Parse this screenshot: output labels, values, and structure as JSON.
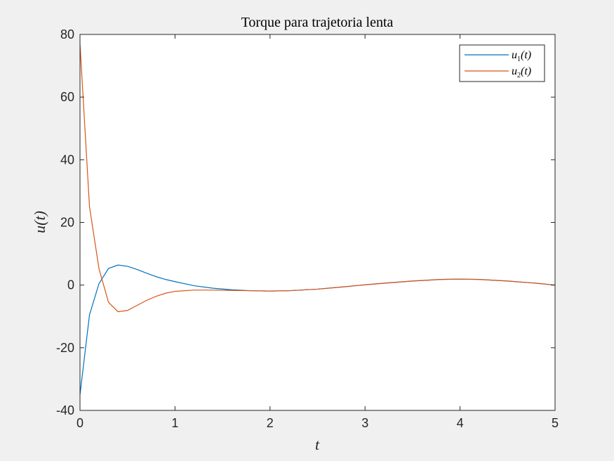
{
  "chart_data": {
    "type": "line",
    "title": "Torque para trajetoria lenta",
    "xlabel": "t",
    "ylabel": "u(t)",
    "xlim": [
      0,
      5
    ],
    "ylim": [
      -40,
      80
    ],
    "xticks": [
      0,
      1,
      2,
      3,
      4,
      5
    ],
    "yticks": [
      -40,
      -20,
      0,
      20,
      40,
      60,
      80
    ],
    "grid": false,
    "legend_position": "top-right",
    "x": [
      0,
      0.1,
      0.2,
      0.3,
      0.4,
      0.5,
      0.6,
      0.7,
      0.8,
      0.9,
      1.0,
      1.2,
      1.4,
      1.6,
      1.8,
      2.0,
      2.2,
      2.5,
      2.8,
      3.0,
      3.2,
      3.5,
      3.8,
      4.0,
      4.2,
      4.5,
      4.8,
      5.0
    ],
    "series": [
      {
        "name": "u1(t)",
        "label_main": "u",
        "label_sub": "1",
        "label_rest": "(t)",
        "color": "#0072bd",
        "values": [
          -35,
          -9.5,
          0.5,
          5.3,
          6.4,
          6.0,
          5.0,
          3.8,
          2.7,
          1.8,
          1.1,
          -0.2,
          -1.0,
          -1.5,
          -1.8,
          -1.9,
          -1.8,
          -1.3,
          -0.5,
          0.1,
          0.6,
          1.3,
          1.8,
          1.9,
          1.8,
          1.3,
          0.6,
          0.0
        ]
      },
      {
        "name": "u2(t)",
        "label_main": "u",
        "label_sub": "2",
        "label_rest": "(t)",
        "color": "#d95319",
        "values": [
          77,
          25,
          5.2,
          -5.5,
          -8.5,
          -8.1,
          -6.5,
          -4.9,
          -3.6,
          -2.6,
          -2.0,
          -1.6,
          -1.6,
          -1.7,
          -1.8,
          -1.9,
          -1.8,
          -1.3,
          -0.5,
          0.1,
          0.6,
          1.3,
          1.8,
          1.9,
          1.8,
          1.3,
          0.6,
          0.0
        ]
      }
    ]
  }
}
